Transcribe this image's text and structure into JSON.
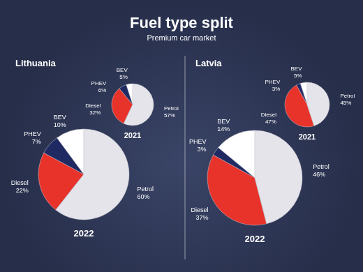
{
  "title": "Fuel type split",
  "subtitle": "Premium car market",
  "chart_data": [
    {
      "type": "pie",
      "title": "2022",
      "subtitle": "Lithuania",
      "categories": [
        "BEV",
        "PHEV",
        "Diesel",
        "Petrol"
      ],
      "values": [
        10,
        7,
        22,
        60
      ],
      "value_labels": [
        "10%",
        "7%",
        "22%",
        "60%"
      ],
      "colors": [
        "#ffffff",
        "#1f2a63",
        "#e8332b",
        "#e4e4ea"
      ],
      "data_labels": true
    },
    {
      "type": "pie",
      "title": "2021",
      "categories": [
        "BEV",
        "PHEV",
        "Diesel",
        "Petrol"
      ],
      "values": [
        5,
        6,
        32,
        57
      ],
      "value_labels": [
        "5%",
        "6%",
        "32%",
        "57%"
      ],
      "colors": [
        "#ffffff",
        "#1f2a63",
        "#e8332b",
        "#e4e4ea"
      ],
      "data_labels": true
    },
    {
      "type": "pie",
      "title": "2022",
      "subtitle": "Latvia",
      "categories": [
        "BEV",
        "PHEV",
        "Diesel",
        "Petrol"
      ],
      "values": [
        14,
        3,
        37,
        46
      ],
      "value_labels": [
        "14%",
        "3%",
        "37%",
        "46%"
      ],
      "colors": [
        "#ffffff",
        "#1f2a63",
        "#e8332b",
        "#e4e4ea"
      ],
      "data_labels": true
    },
    {
      "type": "pie",
      "title": "2021",
      "categories": [
        "BEV",
        "PHEV",
        "Diesel",
        "Petrol"
      ],
      "values": [
        5,
        3,
        47,
        45
      ],
      "value_labels": [
        "5%",
        "3%",
        "47%",
        "45%"
      ],
      "colors": [
        "#ffffff",
        "#1f2a63",
        "#e8332b",
        "#e4e4ea"
      ],
      "data_labels": true
    }
  ]
}
